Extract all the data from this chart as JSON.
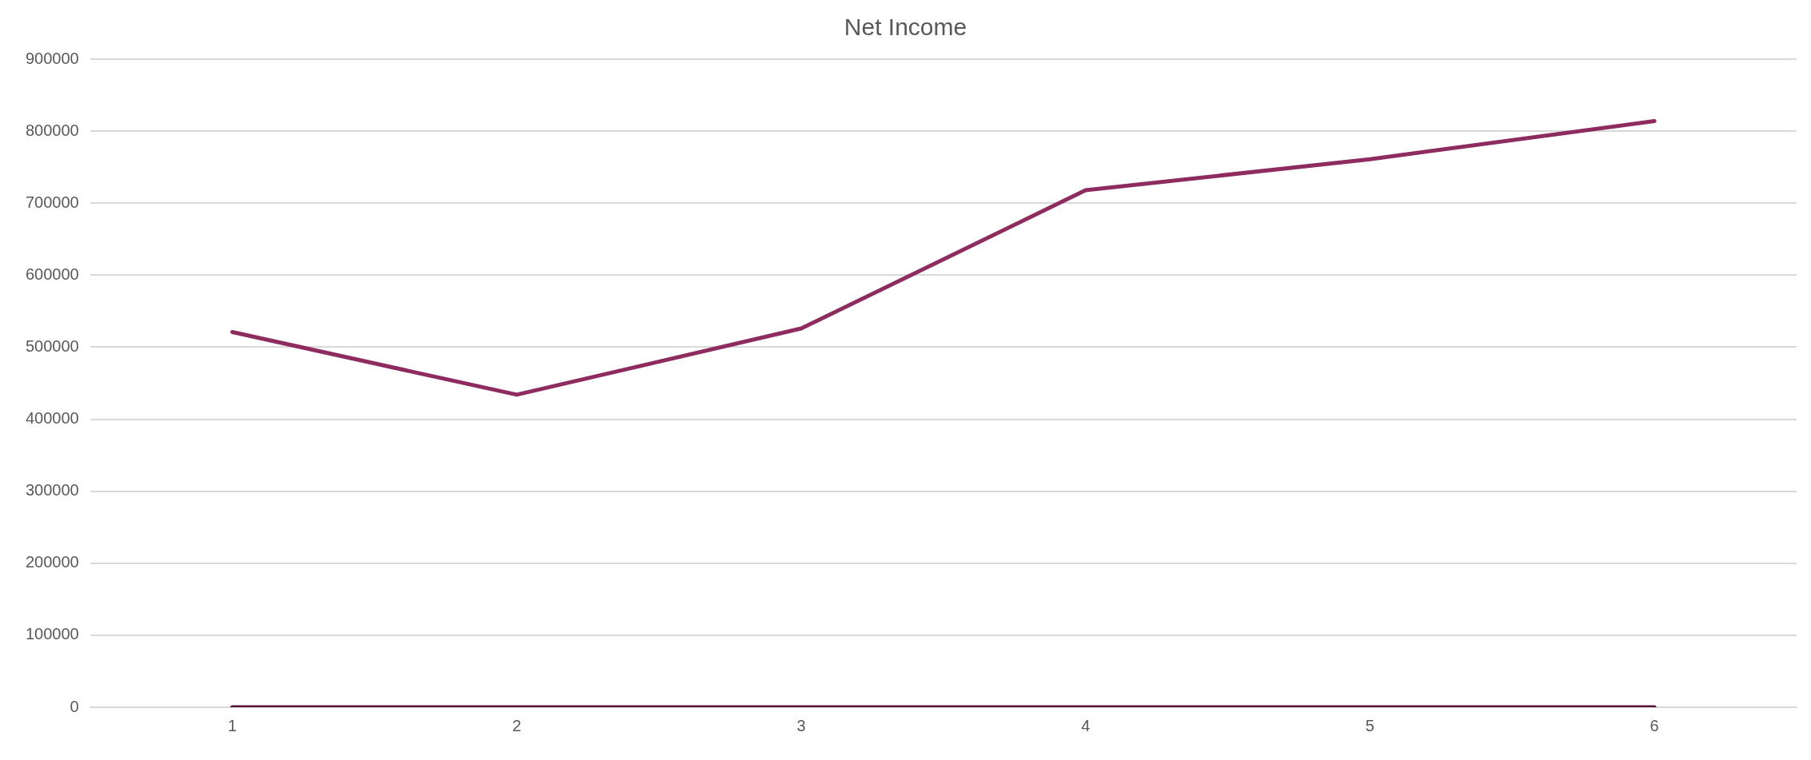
{
  "chart_data": {
    "type": "line",
    "title": "Net Income",
    "categories": [
      "1",
      "2",
      "3",
      "4",
      "5",
      "6"
    ],
    "series": [
      {
        "color": "#8e2c5f",
        "values": [
          521000,
          434000,
          526000,
          718000,
          761000,
          814000
        ]
      },
      {
        "color": "#5a1438",
        "values": [
          0,
          0,
          0,
          0,
          0,
          0
        ]
      }
    ],
    "ylim": [
      0,
      900000
    ],
    "yticks": [
      0,
      100000,
      200000,
      300000,
      400000,
      500000,
      600000,
      700000,
      800000,
      900000
    ],
    "grid": "y",
    "legend": false,
    "marker": "none",
    "line_style": "solid"
  }
}
